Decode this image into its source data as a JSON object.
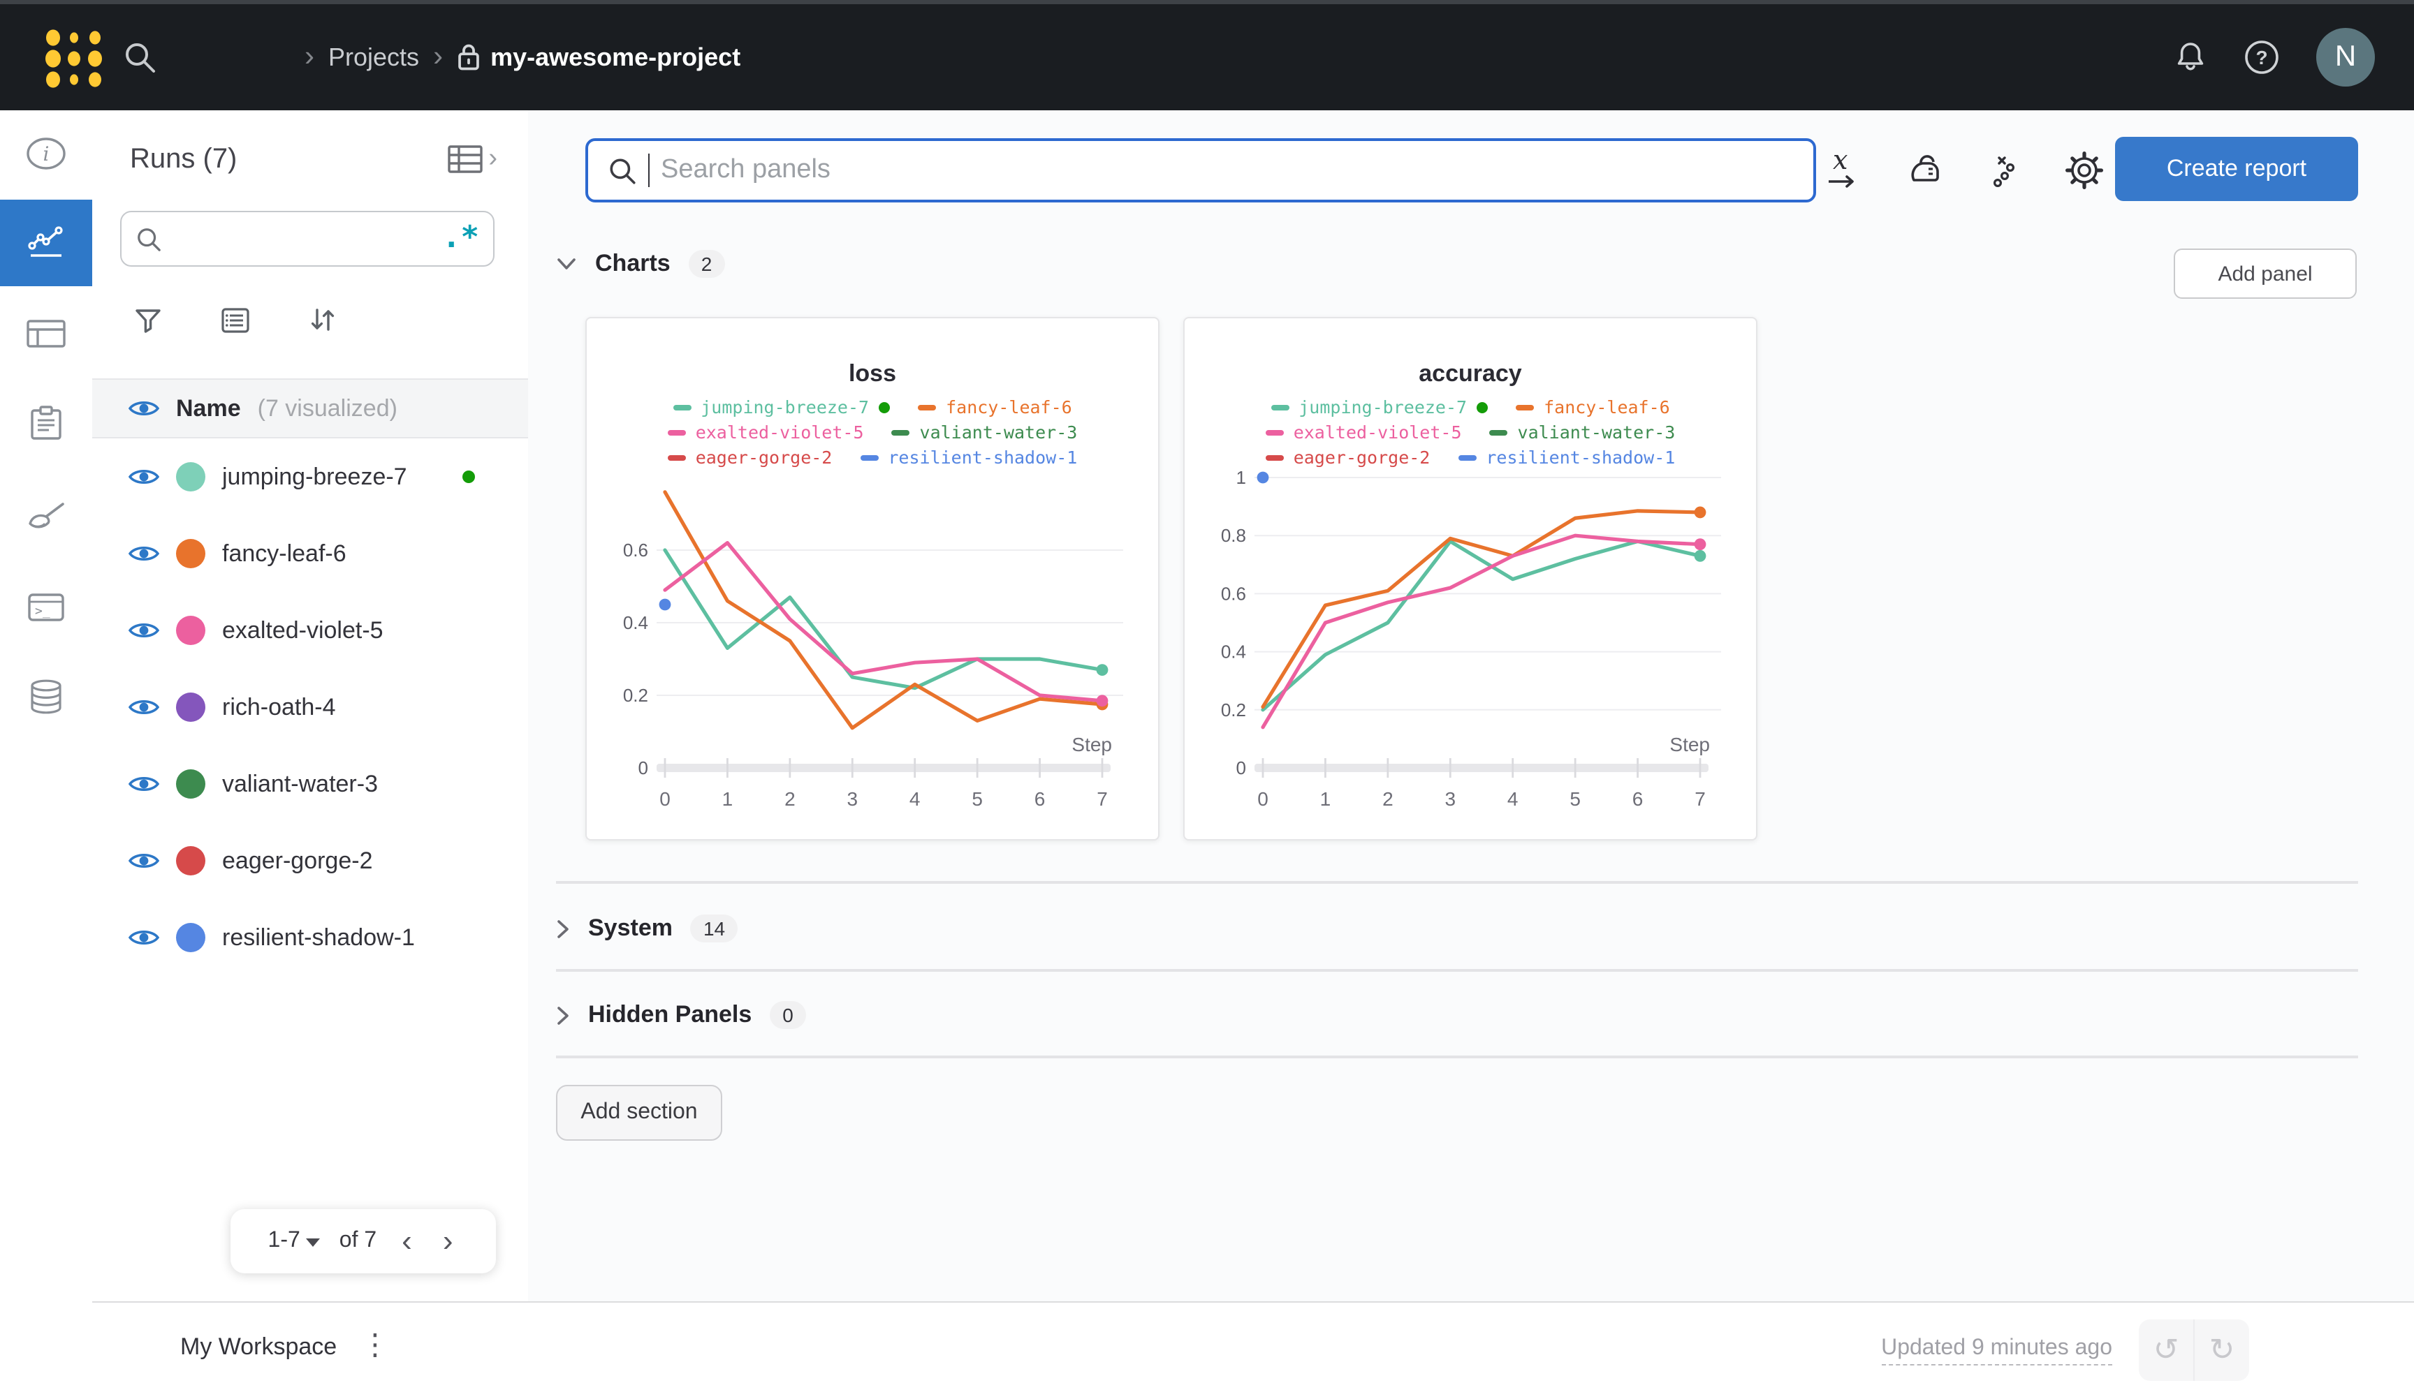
{
  "topbar": {
    "breadcrumb": {
      "sep": "›",
      "projects": "Projects",
      "project": "my-awesome-project"
    },
    "avatar_initial": "N"
  },
  "sidebar": {
    "title": "Runs (7)",
    "header": {
      "name": "Name",
      "visualized": "(7 visualized)"
    },
    "runs": [
      {
        "name": "jumping-breeze-7",
        "color": "#7ed0b8",
        "running": true
      },
      {
        "name": "fancy-leaf-6",
        "color": "#e8732c",
        "running": false
      },
      {
        "name": "exalted-violet-5",
        "color": "#ec609f",
        "running": false
      },
      {
        "name": "rich-oath-4",
        "color": "#8456bc",
        "running": false
      },
      {
        "name": "valiant-water-3",
        "color": "#3d8b4f",
        "running": false
      },
      {
        "name": "eager-gorge-2",
        "color": "#d64a4a",
        "running": false
      },
      {
        "name": "resilient-shadow-1",
        "color": "#5586e2",
        "running": false
      }
    ],
    "running_indicator_color": "#149c08",
    "pagination": {
      "range": "1-7",
      "of": "of 7",
      "prev": "‹",
      "next": "›"
    }
  },
  "main": {
    "search_placeholder": "Search panels",
    "create_report_label": "Create report",
    "add_panel_label": "Add panel",
    "add_section_label": "Add section",
    "sections": [
      {
        "label": "Charts",
        "count": "2"
      },
      {
        "label": "System",
        "count": "14"
      },
      {
        "label": "Hidden Panels",
        "count": "0"
      }
    ]
  },
  "footer": {
    "workspace_label": "My Workspace",
    "updated_label": "Updated 9 minutes ago"
  },
  "colors": {
    "accent_blue": "#3779cb",
    "selected_rail_blue": "#2e78c8",
    "eye_blue": "#2d78c7",
    "logo_gold": "#ffc933"
  },
  "chart_data": [
    {
      "type": "line",
      "title": "loss",
      "xlabel": "Step",
      "x": [
        0,
        1,
        2,
        3,
        4,
        5,
        6,
        7
      ],
      "ylim": [
        0,
        0.8
      ],
      "yticks": [
        0,
        0.2,
        0.4,
        0.6
      ],
      "grid": true,
      "legend_position": "top",
      "series": [
        {
          "name": "jumping-breeze-7",
          "color": "#5dbfa0",
          "running": true,
          "end_marker": true,
          "values": [
            0.6,
            0.33,
            0.47,
            0.25,
            0.22,
            0.3,
            0.3,
            0.27
          ]
        },
        {
          "name": "fancy-leaf-6",
          "color": "#e8732c",
          "end_marker": true,
          "values": [
            0.76,
            0.46,
            0.35,
            0.11,
            0.23,
            0.13,
            0.19,
            0.175
          ]
        },
        {
          "name": "exalted-violet-5",
          "color": "#ec609f",
          "end_marker": true,
          "values": [
            0.49,
            0.62,
            0.41,
            0.26,
            0.29,
            0.3,
            0.2,
            0.185
          ]
        },
        {
          "name": "valiant-water-3",
          "color": "#3d8b4f",
          "values": []
        },
        {
          "name": "eager-gorge-2",
          "color": "#d64a4a",
          "values": []
        },
        {
          "name": "resilient-shadow-1",
          "color": "#5586e2",
          "end_marker": true,
          "values": [
            0.45,
            null,
            null,
            null,
            null,
            null,
            null,
            null
          ]
        }
      ]
    },
    {
      "type": "line",
      "title": "accuracy",
      "xlabel": "Step",
      "x": [
        0,
        1,
        2,
        3,
        4,
        5,
        6,
        7
      ],
      "ylim": [
        0,
        1.0
      ],
      "yticks": [
        0,
        0.2,
        0.4,
        0.6,
        0.8,
        1
      ],
      "grid": true,
      "legend_position": "top",
      "series": [
        {
          "name": "jumping-breeze-7",
          "color": "#5dbfa0",
          "running": true,
          "end_marker": true,
          "values": [
            0.2,
            0.39,
            0.5,
            0.78,
            0.65,
            0.72,
            0.78,
            0.73
          ]
        },
        {
          "name": "fancy-leaf-6",
          "color": "#e8732c",
          "end_marker": true,
          "values": [
            0.21,
            0.56,
            0.61,
            0.79,
            0.73,
            0.86,
            0.885,
            0.88
          ]
        },
        {
          "name": "exalted-violet-5",
          "color": "#ec609f",
          "end_marker": true,
          "values": [
            0.14,
            0.5,
            0.57,
            0.62,
            0.73,
            0.8,
            0.78,
            0.77
          ]
        },
        {
          "name": "valiant-water-3",
          "color": "#3d8b4f",
          "values": []
        },
        {
          "name": "eager-gorge-2",
          "color": "#d64a4a",
          "values": []
        },
        {
          "name": "resilient-shadow-1",
          "color": "#5586e2",
          "end_marker": true,
          "values": [
            1.0,
            null,
            null,
            null,
            null,
            null,
            null,
            null
          ]
        }
      ]
    }
  ]
}
